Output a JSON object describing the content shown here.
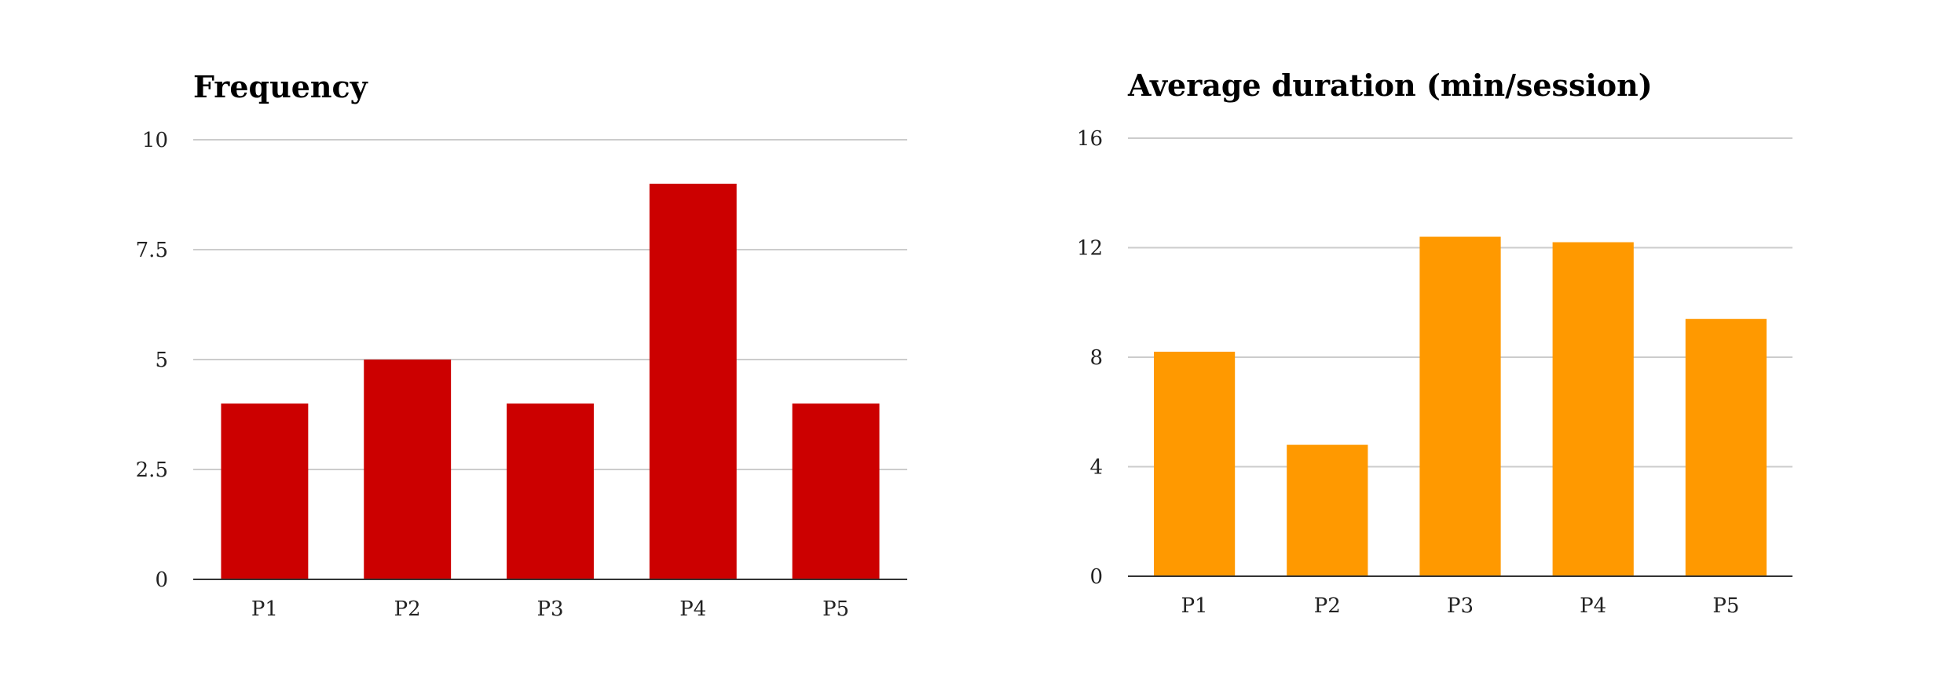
{
  "chart_data": [
    {
      "type": "bar",
      "title": "Frequency",
      "categories": [
        "P1",
        "P2",
        "P3",
        "P4",
        "P5"
      ],
      "values": [
        4,
        5,
        4,
        9,
        4
      ],
      "ylim": [
        0,
        10
      ],
      "yticks": [
        0,
        2.5,
        5,
        7.5,
        10
      ],
      "ytick_labels": [
        "0",
        "2.5",
        "5",
        "7.5",
        "10"
      ],
      "color": "#cc0000",
      "gridlines": true,
      "legend": "none",
      "xlabel": "",
      "ylabel": ""
    },
    {
      "type": "bar",
      "title": "Average duration (min/session)",
      "categories": [
        "P1",
        "P2",
        "P3",
        "P4",
        "P5"
      ],
      "values": [
        8.2,
        4.8,
        12.4,
        12.2,
        9.4
      ],
      "ylim": [
        0,
        16
      ],
      "yticks": [
        0,
        4,
        8,
        12,
        16
      ],
      "ytick_labels": [
        "0",
        "4",
        "8",
        "12",
        "16"
      ],
      "color": "#ff9900",
      "gridlines": true,
      "legend": "none",
      "xlabel": "",
      "ylabel": ""
    }
  ]
}
